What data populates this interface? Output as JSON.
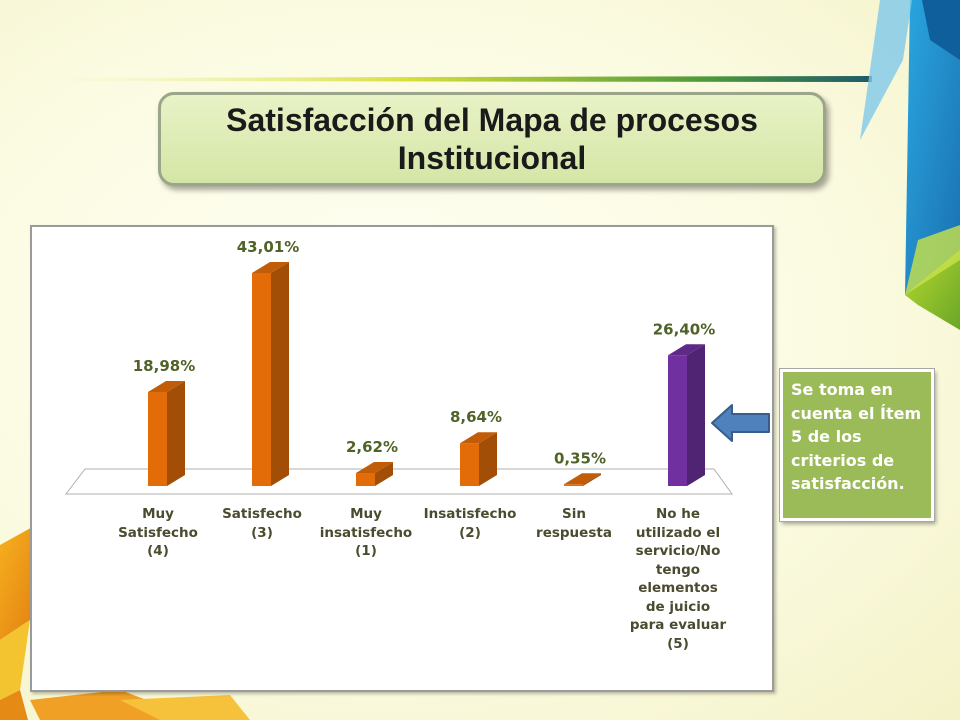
{
  "slide": {
    "title": "Satisfacción  del Mapa de procesos\nInstitucional",
    "note": "Se toma en cuenta el Ítem 5 de los criterios de satisfacción."
  },
  "colors": {
    "bar_primary": "#e36c09",
    "bar_highlight": "#7030a0",
    "label_text": "#4f6228",
    "note_bg": "#9bbb59",
    "arrow_fill": "#4f81bd"
  },
  "chart_data": {
    "type": "bar",
    "style": "3d-column",
    "categories": [
      "Muy\nSatisfecho\n(4)",
      "Satisfecho\n(3)",
      "Muy\ninsatisfecho\n(1)",
      "Insatisfecho\n(2)",
      "Sin\nrespuesta",
      "No he\nutilizado el\nservicio/No\ntengo\nelementos\nde juicio\npara evaluar\n(5)"
    ],
    "values": [
      18.98,
      43.01,
      2.62,
      8.64,
      0.35,
      26.4
    ],
    "value_labels": [
      "18,98%",
      "43,01%",
      "2,62%",
      "8,64%",
      "0,35%",
      "26,40%"
    ],
    "highlight_index": 5,
    "grid": false,
    "legend": "none"
  }
}
